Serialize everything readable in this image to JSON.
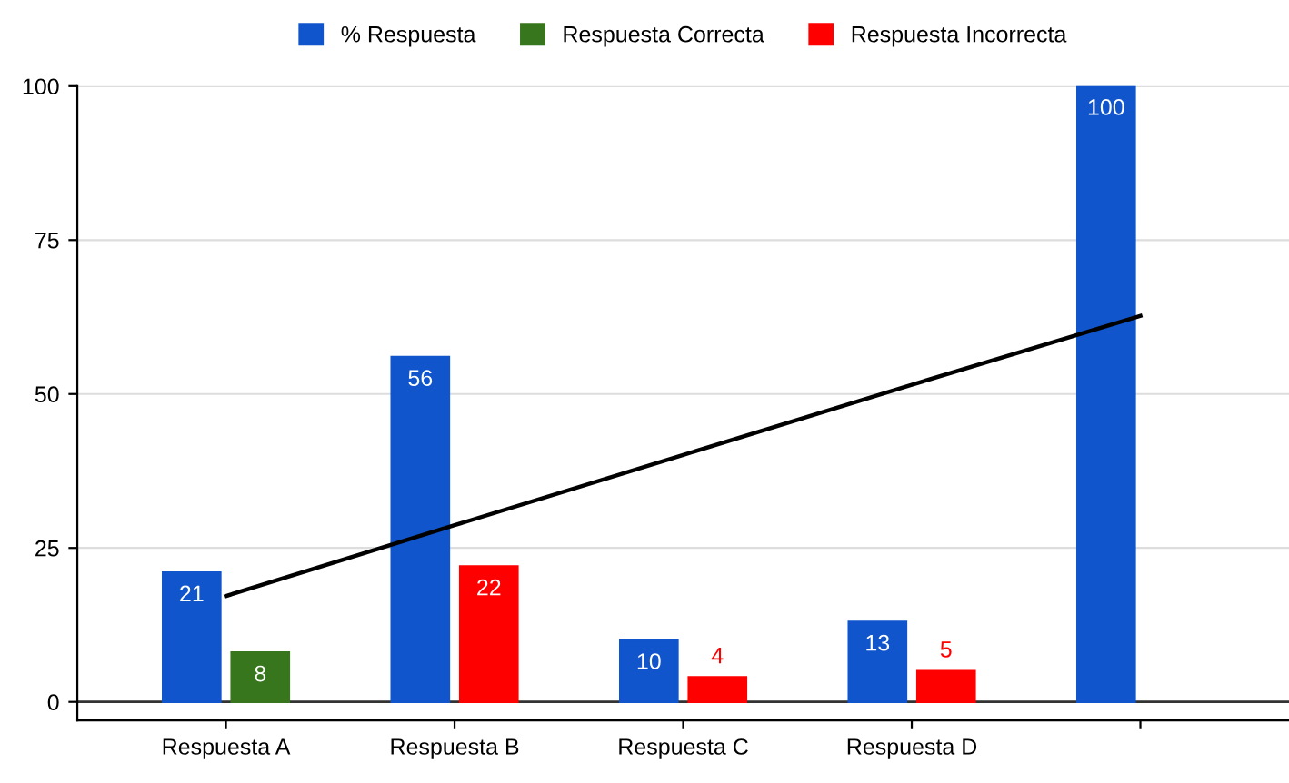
{
  "chart_data": {
    "type": "bar",
    "categories": [
      "Respuesta A",
      "Respuesta B",
      "Respuesta C",
      "Respuesta D",
      null
    ],
    "series": [
      {
        "name": "% Respuesta",
        "color": "#1155cc",
        "values": [
          21,
          56,
          10,
          13,
          100
        ],
        "value_labels": [
          "21",
          "56",
          "10",
          "13",
          "100"
        ]
      },
      {
        "name": "Respuesta Correcta",
        "color": "#38761d",
        "values": [
          8,
          null,
          null,
          null,
          null
        ],
        "value_labels": [
          "8",
          null,
          null,
          null,
          null
        ]
      },
      {
        "name": "Respuesta Incorrecta",
        "color": "#ff0000",
        "values": [
          null,
          22,
          4,
          5,
          null
        ],
        "value_labels": [
          null,
          "22",
          "4",
          "5",
          null
        ]
      },
      {
        "type": "line",
        "color": "#000000",
        "values": [
          17.2,
          28.7,
          40.1,
          51.5,
          62.7
        ]
      }
    ],
    "ylim": [
      -3,
      100
    ],
    "yticks": [
      0,
      25,
      50,
      75,
      100
    ],
    "grid": "y",
    "legend": "top"
  }
}
